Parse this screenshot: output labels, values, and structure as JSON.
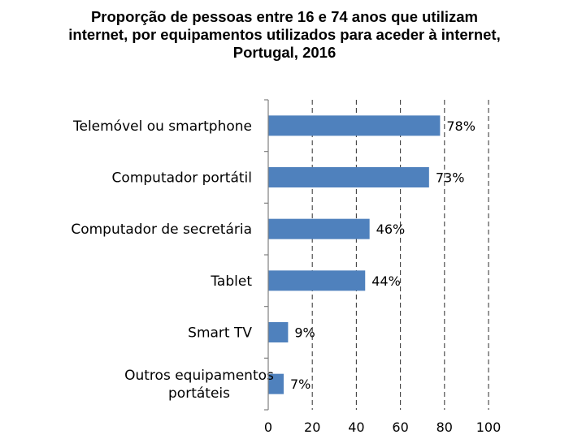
{
  "chart_data": {
    "type": "bar",
    "orientation": "horizontal",
    "title_lines": [
      "Proporção de pessoas entre 16 e 74 anos que utilizam",
      "internet, por equipamentos utilizados para aceder à internet,",
      "Portugal, 2016"
    ],
    "categories": [
      [
        "Telemóvel ou smartphone"
      ],
      [
        "Computador portátil"
      ],
      [
        "Computador de secretária"
      ],
      [
        "Tablet"
      ],
      [
        "Smart TV"
      ],
      [
        "Outros equipamentos",
        "portáteis"
      ]
    ],
    "values": [
      78,
      73,
      46,
      44,
      9,
      7
    ],
    "value_labels": [
      "78%",
      "73%",
      "46%",
      "44%",
      "9%",
      "7%"
    ],
    "xlim": [
      0,
      100
    ],
    "xticks": [
      0,
      20,
      40,
      60,
      80,
      100
    ],
    "xlabel": "",
    "ylabel": "",
    "grid": "vertical dashed",
    "bar_color": "#4f81bd"
  }
}
